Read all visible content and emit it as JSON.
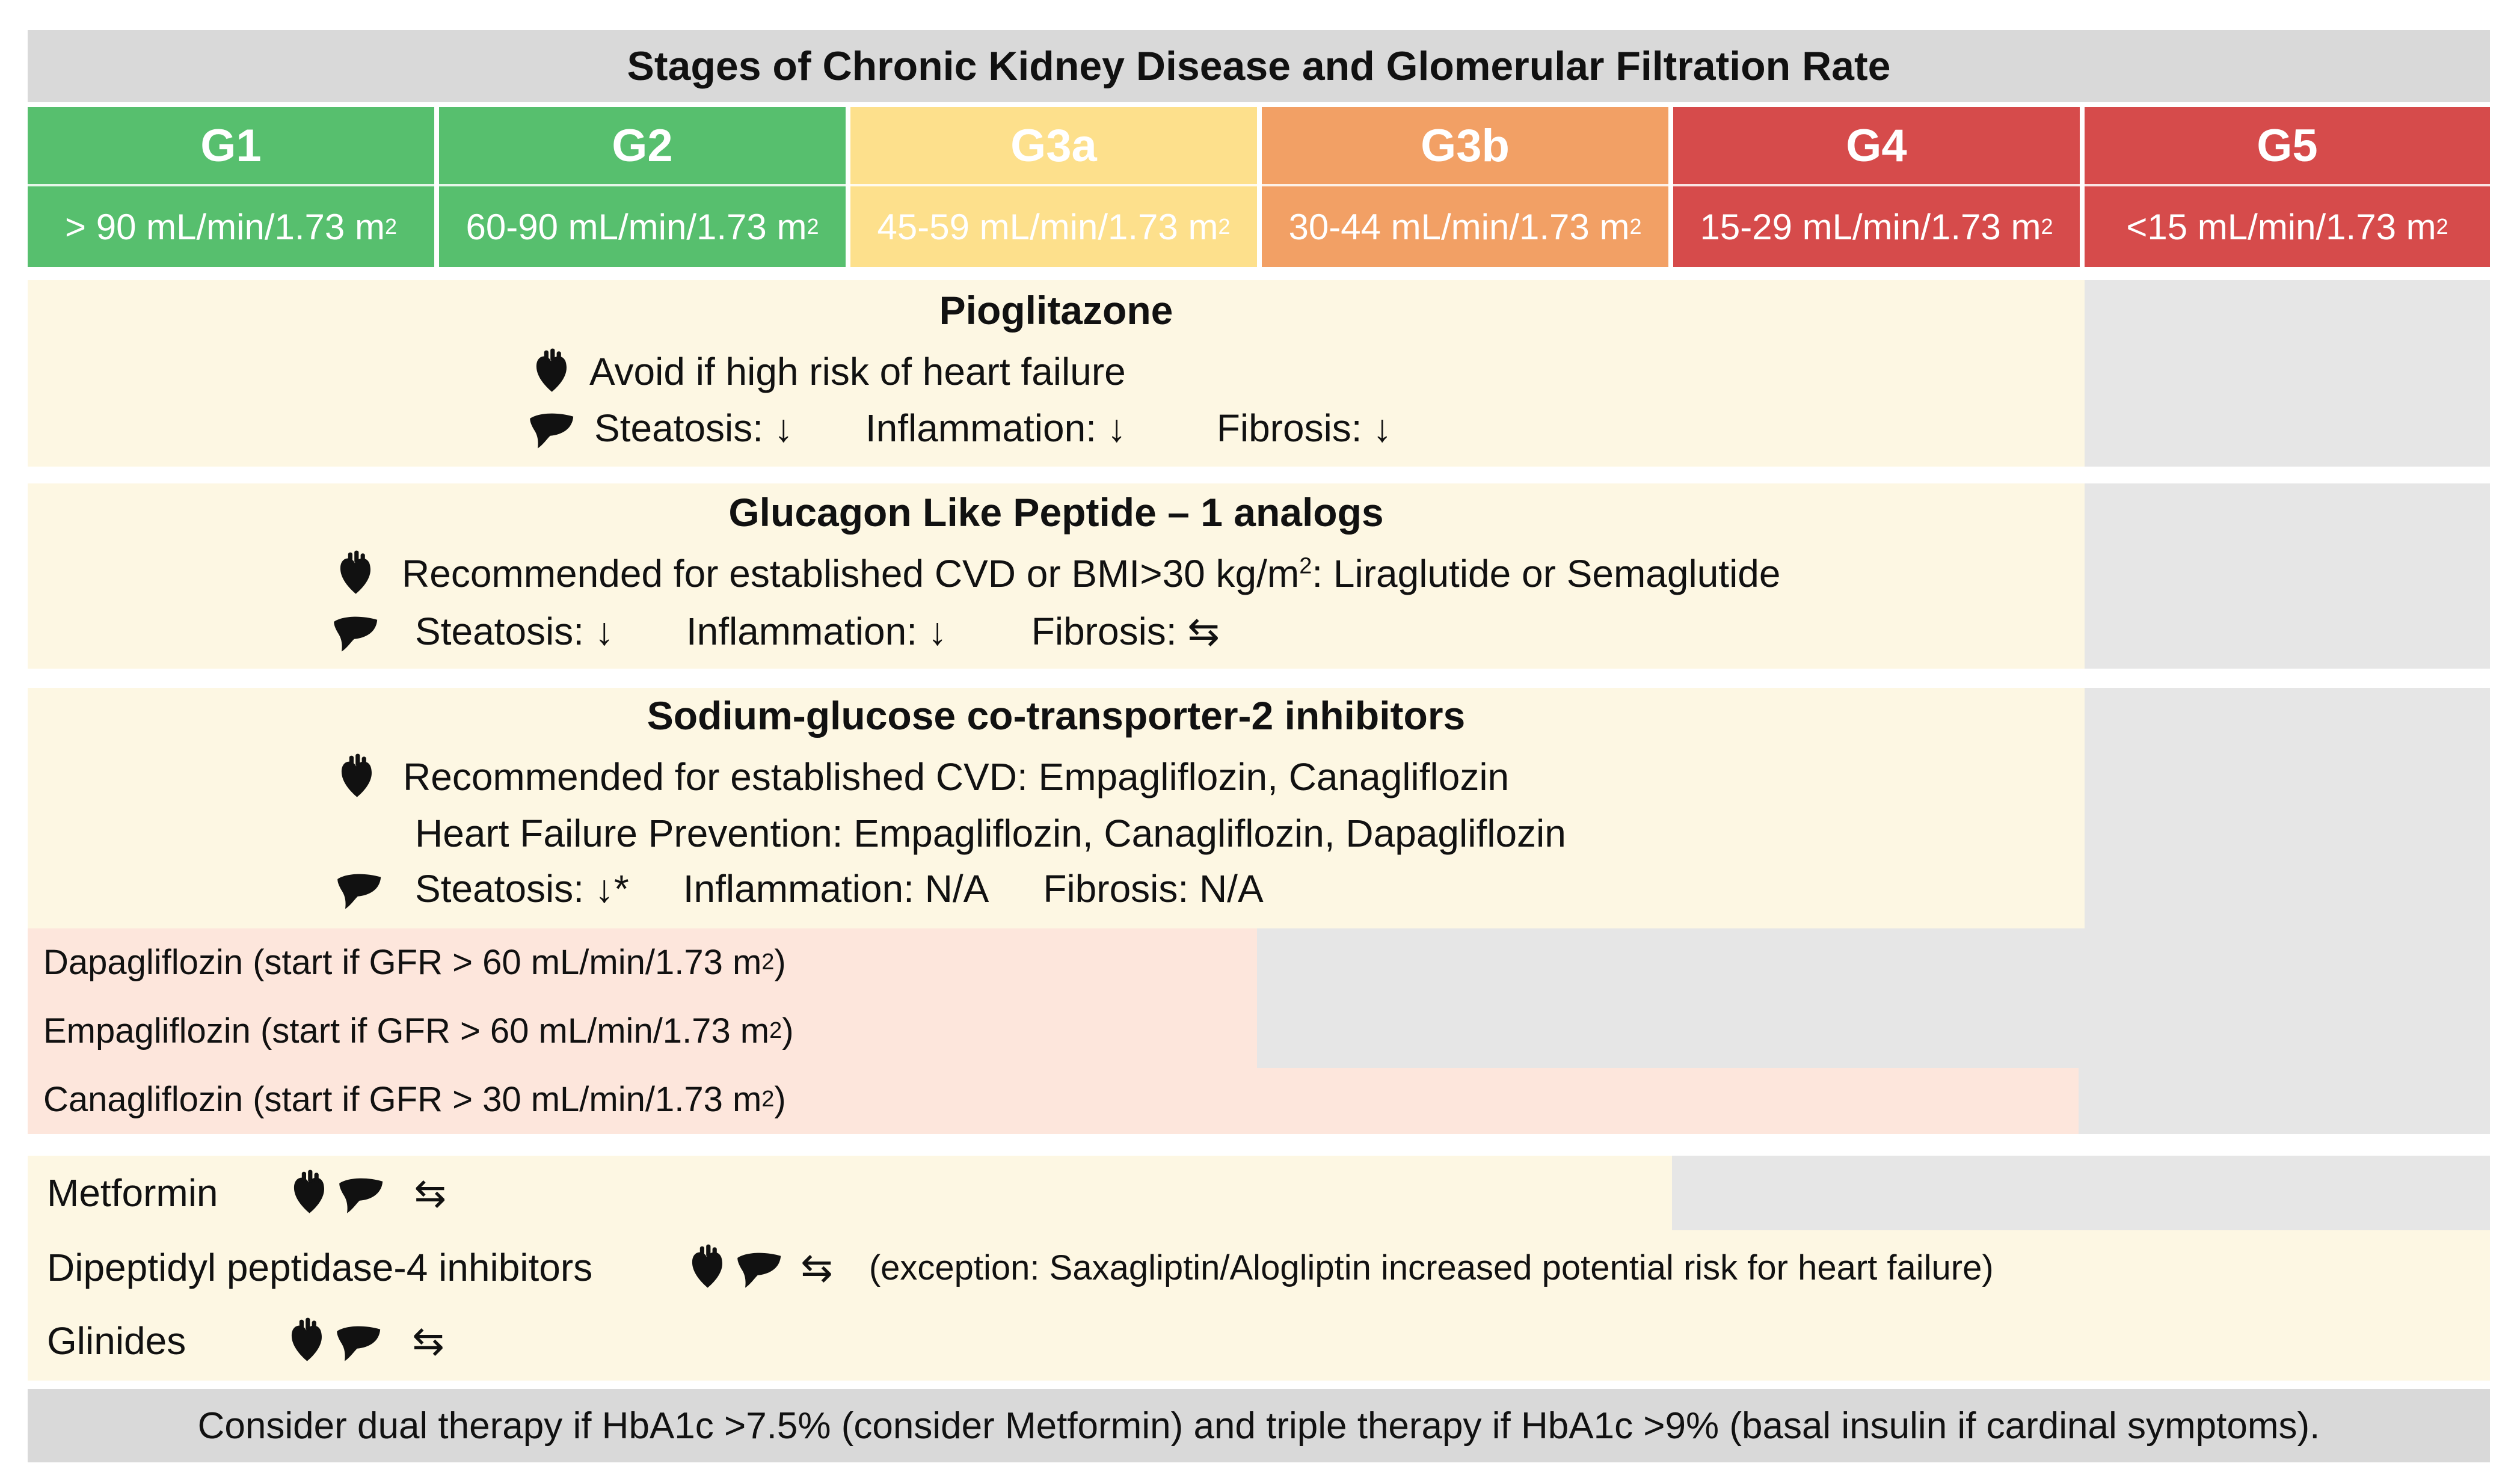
{
  "title": "Stages of Chronic Kidney Disease and Glomerular Filtration Rate",
  "stages": [
    {
      "code": "G1",
      "gfr": "> 90 mL/min/1.73 m",
      "sup": "2",
      "color": "#57bf6e"
    },
    {
      "code": "G2",
      "gfr": "60-90 mL/min/1.73 m",
      "sup": "2",
      "color": "#57bf6e"
    },
    {
      "code": "G3a",
      "gfr": "45-59 mL/min/1.73 m",
      "sup": "2",
      "color": "#fde08c"
    },
    {
      "code": "G3b",
      "gfr": "30-44 mL/min/1.73 m",
      "sup": "2",
      "color": "#f2a065"
    },
    {
      "code": "G4",
      "gfr": "15-29 mL/min/1.73 m",
      "sup": "2",
      "color": "#d64b4b"
    },
    {
      "code": "G5",
      "gfr": "<15 mL/min/1.73 m",
      "sup": "2",
      "color": "#d64b4b"
    }
  ],
  "pioglitazone": {
    "title": "Pioglitazone",
    "heart": "Avoid if high risk of heart failure",
    "steatosis": "Steatosis: ↓",
    "inflammation": "Inflammation: ↓",
    "fibrosis": "Fibrosis: ↓"
  },
  "glp1": {
    "title": "Glucagon Like Peptide – 1 analogs",
    "heart_a": "Recommended for established CVD or BMI>30 kg/m",
    "heart_sup": "2",
    "heart_b": ": Liraglutide or Semaglutide",
    "steatosis": "Steatosis: ↓",
    "inflammation": "Inflammation: ↓",
    "fibrosis": "Fibrosis: ⇆"
  },
  "sglt2": {
    "title": "Sodium-glucose co-transporter-2 inhibitors",
    "heart_1": "Recommended for established CVD: Empagliflozin, Canagliflozin",
    "heart_2": "Heart Failure Prevention: Empagliflozin, Canagliflozin, Dapagliflozin",
    "steatosis": "Steatosis: ↓*",
    "inflammation": "Inflammation: N/A",
    "fibrosis": "Fibrosis: N/A"
  },
  "sglt2_drugs": [
    {
      "text": "Dapagliflozin (start if GFR > 60 mL/min/1.73 m",
      "sup": "2",
      "close": ")"
    },
    {
      "text": "Empagliflozin (start if GFR > 60 mL/min/1.73 m",
      "sup": "2",
      "close": ")"
    },
    {
      "text": "Canagliflozin (start if GFR > 30 mL/min/1.73 m",
      "sup": "2",
      "close": ")"
    }
  ],
  "others": {
    "metformin": "Metformin",
    "dpp4": "Dipeptidyl peptidase-4 inhibitors",
    "dpp4_note": "(exception: Saxagliptin/Alogliptin increased potential risk for heart failure)",
    "glinides": "Glinides",
    "neutral": "⇆"
  },
  "footer": "Consider dual therapy if HbA1c >7.5% (consider Metformin) and triple therapy if HbA1c >9% (basal insulin if cardinal symptoms).",
  "icons": {
    "heart": "heart-icon",
    "liver": "liver-icon"
  }
}
